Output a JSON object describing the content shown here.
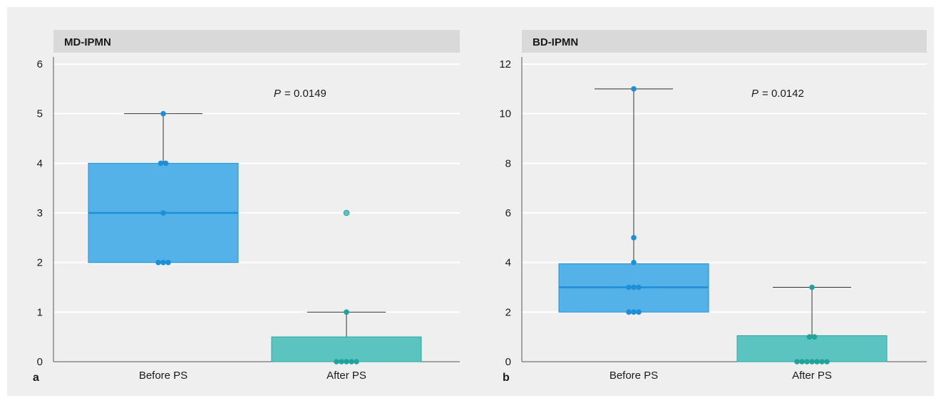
{
  "chart_data": [
    {
      "type": "box",
      "panel_letter": "a",
      "title": "MD-IPMN",
      "annotation": {
        "p_label": "P",
        "p_value": "= 0.0149"
      },
      "ylim": [
        0,
        6
      ],
      "yticks": [
        0,
        1,
        2,
        3,
        4,
        5,
        6
      ],
      "grid": true,
      "categories": [
        "Before PS",
        "After PS"
      ],
      "boxes": [
        {
          "name": "Before PS",
          "whisker_low": 2,
          "q1": 2,
          "median": 3,
          "q3": 4,
          "whisker_high": 5,
          "color": "#55b2e8",
          "edge": "#1e8fd6",
          "points": [
            2,
            2,
            2,
            3,
            4,
            4,
            5
          ],
          "point_color": "#1c8fd8"
        },
        {
          "name": "After PS",
          "whisker_low": 0,
          "q1": 0,
          "median": 0,
          "q3": 0.5,
          "whisker_high": 1,
          "color": "#5bc4c0",
          "edge": "#2aa7a2",
          "points": [
            0,
            0,
            0,
            0,
            0,
            1
          ],
          "outliers": [
            3
          ],
          "point_color": "#1fa39d"
        }
      ]
    },
    {
      "type": "box",
      "panel_letter": "b",
      "title": "BD-IPMN",
      "annotation": {
        "p_label": "P",
        "p_value": "= 0.0142"
      },
      "ylim": [
        0,
        12
      ],
      "yticks": [
        0,
        2,
        4,
        6,
        8,
        10,
        12
      ],
      "grid": true,
      "categories": [
        "Before PS",
        "After PS"
      ],
      "boxes": [
        {
          "name": "Before PS",
          "whisker_low": 2,
          "q1": 2,
          "median": 3,
          "q3": 3.95,
          "whisker_high": 11,
          "color": "#55b2e8",
          "edge": "#1e8fd6",
          "points": [
            2,
            2,
            2,
            3,
            3,
            3,
            4,
            5,
            11
          ],
          "point_color": "#1c8fd8"
        },
        {
          "name": "After PS",
          "whisker_low": 0,
          "q1": 0,
          "median": 0,
          "q3": 1.05,
          "whisker_high": 3,
          "color": "#5bc4c0",
          "edge": "#2aa7a2",
          "points": [
            0,
            0,
            0,
            0,
            0,
            0,
            0,
            1,
            1,
            3
          ],
          "point_color": "#1fa39d"
        }
      ]
    }
  ]
}
